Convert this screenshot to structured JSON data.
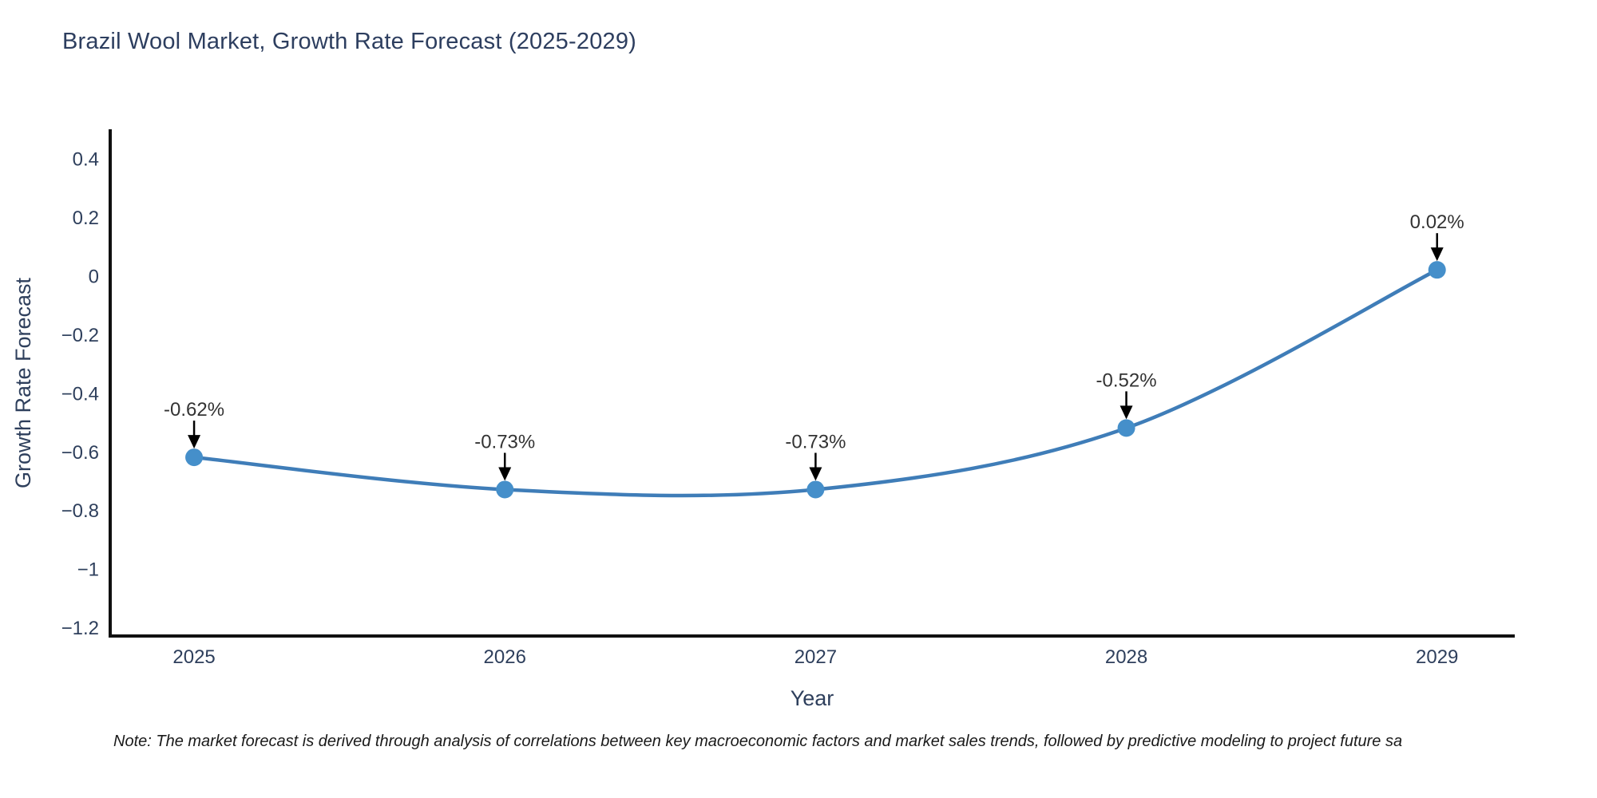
{
  "title": "Brazil Wool Market, Growth Rate Forecast (2025-2029)",
  "note": "Note: The market forecast is derived through analysis of correlations between key macroeconomic factors and market sales trends, followed by predictive modeling to project future sa",
  "chart_data": {
    "type": "line",
    "title": "Brazil Wool Market, Growth Rate Forecast (2025-2029)",
    "xlabel": "Year",
    "ylabel": "Growth Rate Forecast",
    "x": [
      2025,
      2026,
      2027,
      2028,
      2029
    ],
    "series": [
      {
        "name": "Growth Rate Forecast",
        "values": [
          -0.62,
          -0.73,
          -0.73,
          -0.52,
          0.02
        ]
      }
    ],
    "point_labels": [
      "-0.62%",
      "-0.73%",
      "-0.73%",
      "-0.52%",
      "0.02%"
    ],
    "line_shape": "spline",
    "grid": false,
    "legend": "none",
    "xlim": [
      2024.73,
      2029.25
    ],
    "ylim": [
      -1.23,
      0.5
    ],
    "xticks": {
      "values": [
        2025,
        2026,
        2027,
        2028,
        2029
      ],
      "labels": [
        "2025",
        "2026",
        "2027",
        "2028",
        "2029"
      ]
    },
    "yticks": {
      "values": [
        -1.2,
        -1,
        -0.8,
        -0.6,
        -0.4,
        -0.2,
        0,
        0.2,
        0.4
      ],
      "labels": [
        "−1.2",
        "−1",
        "−0.8",
        "−0.6",
        "−0.4",
        "−0.2",
        "0",
        "0.2",
        "0.4"
      ]
    },
    "colors": {
      "line": "#3f7db8",
      "marker": "#458fca",
      "axis": "#101010",
      "text": "#2e3f5c",
      "annotation": "#333333",
      "arrow": "#000000",
      "background": "#ffffff"
    }
  }
}
